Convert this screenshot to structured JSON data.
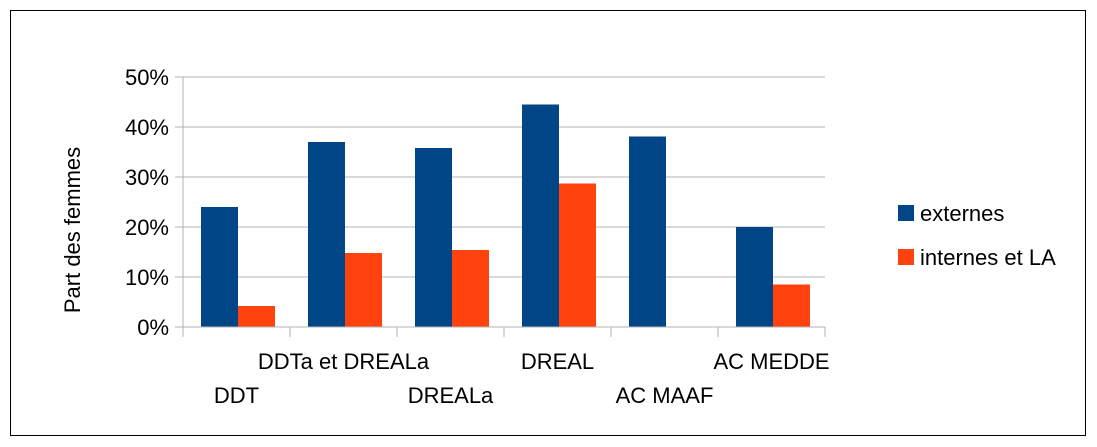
{
  "chart_data": {
    "type": "bar",
    "ylabel": "Part des femmes",
    "xlabel": "",
    "title": "",
    "ylim": [
      0,
      0.5
    ],
    "yticks": [
      0,
      0.1,
      0.2,
      0.3,
      0.4,
      0.5
    ],
    "ytick_labels": [
      "0%",
      "10%",
      "20%",
      "30%",
      "40%",
      "50%"
    ],
    "categories": [
      "DDT",
      "DDTa et DREALa",
      "DREALa",
      "DREAL",
      "AC MAAF",
      "AC MEDDE"
    ],
    "series": [
      {
        "name": "externes",
        "color": "#004586",
        "values": [
          0.24,
          0.37,
          0.358,
          0.445,
          0.381,
          0.2
        ]
      },
      {
        "name": "internes et LA",
        "color": "#ff420e",
        "values": [
          0.042,
          0.148,
          0.154,
          0.287,
          0.0,
          0.085
        ]
      }
    ],
    "grid": true,
    "legend": "right"
  }
}
